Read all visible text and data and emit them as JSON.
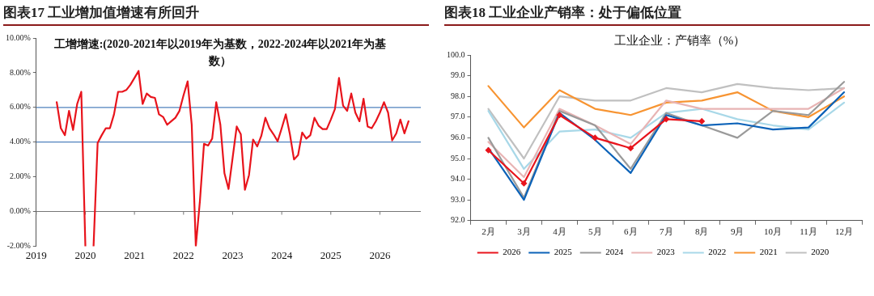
{
  "chart_data": [
    {
      "type": "line",
      "title": "图表17 工业增加值增速有所回升",
      "subtitle": "工增增速:(2020-2021年以2019年为基数，2022-2024年以2021年为基数）",
      "x": [
        "2019-06",
        "2019-07",
        "2019-08",
        "2019-09",
        "2019-10",
        "2019-11",
        "2019-12",
        "2020-01",
        "2020-02",
        "2020-03",
        "2020-04",
        "2020-05",
        "2020-06",
        "2020-07",
        "2020-08",
        "2020-09",
        "2020-10",
        "2020-11",
        "2020-12",
        "2021-01",
        "2021-02",
        "2021-03",
        "2021-04",
        "2021-05",
        "2021-06",
        "2021-07",
        "2021-08",
        "2021-09",
        "2021-10",
        "2021-11",
        "2021-12",
        "2022-01",
        "2022-02",
        "2022-03",
        "2022-04",
        "2022-05",
        "2022-06",
        "2022-07",
        "2022-08",
        "2022-09",
        "2022-10",
        "2022-11",
        "2022-12",
        "2023-01",
        "2023-02",
        "2023-03",
        "2023-04",
        "2023-05",
        "2023-06",
        "2023-07",
        "2023-08",
        "2023-09",
        "2023-10",
        "2023-11",
        "2023-12",
        "2024-01",
        "2024-02",
        "2024-03",
        "2024-04",
        "2024-05",
        "2024-06",
        "2024-07",
        "2024-08",
        "2024-09",
        "2024-10",
        "2024-11",
        "2024-12",
        "2025-01",
        "2025-02",
        "2025-03",
        "2025-04",
        "2025-05",
        "2025-06",
        "2025-07",
        "2025-08",
        "2025-09",
        "2025-10",
        "2025-11",
        "2025-12",
        "2026-01",
        "2026-02",
        "2026-03",
        "2026-04",
        "2026-05",
        "2026-06",
        "2026-07",
        "2026-08"
      ],
      "series": [
        {
          "color": "#e8141c",
          "values": [
            6.3,
            4.8,
            4.4,
            5.8,
            4.7,
            6.2,
            6.9,
            -2.0,
            null,
            -2.0,
            3.95,
            4.4,
            4.8,
            4.8,
            5.6,
            6.9,
            6.9,
            7.0,
            7.3,
            7.7,
            8.1,
            6.2,
            6.8,
            6.6,
            6.55,
            5.6,
            5.45,
            5.0,
            5.2,
            5.4,
            5.8,
            6.7,
            7.5,
            5.0,
            -2.0,
            0.6,
            3.9,
            3.8,
            4.2,
            6.3,
            5.0,
            2.2,
            1.3,
            3.1,
            4.9,
            4.45,
            1.25,
            2.1,
            4.15,
            3.75,
            4.35,
            5.4,
            4.8,
            4.45,
            4.05,
            4.8,
            5.6,
            4.45,
            3.0,
            3.25,
            4.55,
            4.2,
            4.4,
            5.4,
            4.95,
            4.75,
            4.75,
            5.3,
            5.9,
            7.7,
            6.1,
            5.8,
            6.8,
            5.7,
            5.2,
            6.5,
            4.9,
            4.8,
            5.2,
            5.7,
            6.3,
            5.7,
            4.1,
            4.5,
            5.3,
            4.5,
            5.2
          ]
        }
      ],
      "xlim": [
        "2019-01",
        "2026-11"
      ],
      "xticks": [
        "2019",
        "2020",
        "2021",
        "2022",
        "2023",
        "2024",
        "2025",
        "2026"
      ],
      "ylim": [
        -2,
        10
      ],
      "yticks": [
        {
          "value": -2,
          "label": "-2.00%"
        },
        {
          "value": 0,
          "label": "0.00%"
        },
        {
          "value": 2,
          "label": "2.00%"
        },
        {
          "value": 4,
          "label": "4.00%"
        },
        {
          "value": 6,
          "label": "6.00%"
        },
        {
          "value": 8,
          "label": "8.00%"
        },
        {
          "value": 10,
          "label": "10.00%"
        }
      ],
      "ref_lines": [
        {
          "axis": "y",
          "value": 6,
          "color": "#4f81bd"
        },
        {
          "axis": "y",
          "value": 4,
          "color": "#4f81bd"
        }
      ],
      "marker": "none",
      "grid": false,
      "legend": false
    },
    {
      "type": "line",
      "title": "图表18 工业企业产销率：处于偏低位置",
      "subtitle": "工业企业：产销率（%）",
      "categories": [
        "2月",
        "3月",
        "4月",
        "5月",
        "6月",
        "7月",
        "8月",
        "9月",
        "10月",
        "11月",
        "12月"
      ],
      "series": [
        {
          "name": "2026",
          "color": "#e8141c",
          "marker": "diamond",
          "values": [
            95.4,
            93.8,
            97.1,
            96.0,
            95.5,
            96.9,
            96.8,
            null,
            null,
            null,
            null
          ]
        },
        {
          "name": "2025",
          "color": "#0b62b8",
          "values": [
            95.5,
            93.0,
            97.2,
            95.9,
            94.3,
            97.1,
            96.6,
            96.7,
            96.4,
            96.5,
            98.2
          ]
        },
        {
          "name": "2024",
          "color": "#9a9a9a",
          "values": [
            96.0,
            93.1,
            97.3,
            96.6,
            94.5,
            97.2,
            96.6,
            96.0,
            97.3,
            97.1,
            98.7
          ]
        },
        {
          "name": "2023",
          "color": "#e8b4b4",
          "values": [
            95.8,
            94.1,
            97.4,
            96.6,
            95.7,
            97.8,
            97.4,
            97.4,
            97.4,
            97.4,
            98.4
          ]
        },
        {
          "name": "2022",
          "color": "#a8d8e8",
          "values": [
            97.3,
            94.5,
            96.3,
            96.4,
            96.0,
            97.2,
            97.4,
            96.9,
            96.6,
            96.4,
            97.7
          ]
        },
        {
          "name": "2021",
          "color": "#f79432",
          "values": [
            98.5,
            96.5,
            98.3,
            97.4,
            97.1,
            97.7,
            97.8,
            98.2,
            97.3,
            97.0,
            98.0
          ]
        },
        {
          "name": "2020",
          "color": "#c0c0c0",
          "values": [
            97.4,
            95.0,
            98.0,
            97.8,
            97.8,
            98.4,
            98.2,
            98.6,
            98.4,
            98.3,
            98.4
          ]
        }
      ],
      "ylim": [
        92,
        100
      ],
      "yticks": [
        {
          "value": 92,
          "label": "92.0"
        },
        {
          "value": 93,
          "label": "93.0"
        },
        {
          "value": 94,
          "label": "94.0"
        },
        {
          "value": 95,
          "label": "95.0"
        },
        {
          "value": 96,
          "label": "96.0"
        },
        {
          "value": 97,
          "label": "97.0"
        },
        {
          "value": 98,
          "label": "98.0"
        },
        {
          "value": 99,
          "label": "99.0"
        },
        {
          "value": 100,
          "label": "100.0"
        }
      ],
      "marker": "none",
      "grid": false,
      "legend": "bottom"
    }
  ]
}
